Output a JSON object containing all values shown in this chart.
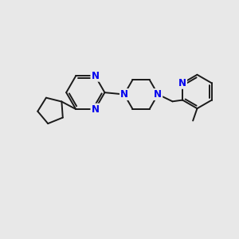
{
  "bg_color": "#e8e8e8",
  "bond_color": "#1a1a1a",
  "atom_color": "#0000ee",
  "line_width": 1.4,
  "font_size": 8.5,
  "figsize": [
    3.0,
    3.0
  ],
  "dpi": 100,
  "xlim": [
    0,
    10
  ],
  "ylim": [
    0,
    10
  ]
}
